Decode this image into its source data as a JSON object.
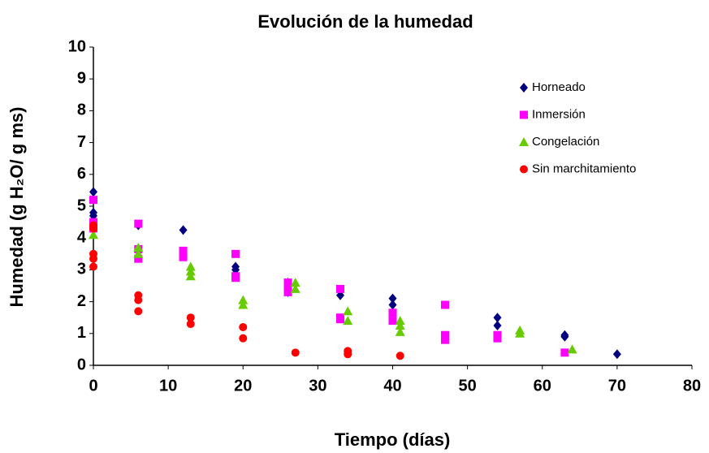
{
  "chart_data": {
    "type": "scatter",
    "title": "Evolución de la humedad",
    "x_label": "Tiempo (días)",
    "y_label": "Humedad (g H₂O/ g ms)",
    "xlim": [
      0,
      80
    ],
    "xticks": [
      0,
      10,
      20,
      30,
      40,
      50,
      60,
      70,
      80
    ],
    "ylim": [
      0,
      10
    ],
    "yticks": [
      0,
      1,
      2,
      3,
      4,
      5,
      6,
      7,
      8,
      9,
      10
    ],
    "grid": false,
    "legend": "upper right",
    "series": [
      {
        "name": "Horneado",
        "color": "#000080",
        "marker": "diamond",
        "x": [
          0,
          0,
          0,
          6,
          6,
          12,
          19,
          19,
          26,
          26,
          33,
          40,
          40,
          54,
          54,
          63,
          63,
          70
        ],
        "values": [
          5.45,
          4.8,
          4.7,
          4.4,
          3.6,
          4.25,
          3.1,
          3.0,
          2.6,
          2.3,
          2.2,
          2.1,
          1.9,
          1.5,
          1.25,
          0.95,
          0.9,
          0.35
        ]
      },
      {
        "name": "Inmersión",
        "color": "#ff00ff",
        "marker": "square",
        "x": [
          0,
          0,
          0,
          6,
          6,
          6,
          12,
          12,
          19,
          19,
          19,
          26,
          26,
          26,
          33,
          33,
          33,
          40,
          40,
          47,
          47,
          47,
          54,
          54,
          63
        ],
        "values": [
          5.2,
          4.5,
          4.3,
          4.45,
          3.65,
          3.35,
          3.6,
          3.4,
          3.5,
          2.8,
          2.75,
          2.6,
          2.5,
          2.3,
          2.4,
          1.5,
          1.45,
          1.65,
          1.4,
          1.9,
          0.95,
          0.8,
          0.95,
          0.85,
          0.4
        ]
      },
      {
        "name": "Congelación",
        "color": "#66cc00",
        "marker": "triangle",
        "x": [
          0,
          6,
          6,
          13,
          13,
          13,
          20,
          20,
          27,
          27,
          34,
          34,
          41,
          41,
          41,
          57,
          57,
          64
        ],
        "values": [
          4.1,
          3.7,
          3.5,
          3.1,
          2.95,
          2.8,
          2.05,
          1.9,
          2.6,
          2.4,
          1.7,
          1.4,
          1.4,
          1.25,
          1.05,
          1.1,
          1.0,
          0.5
        ]
      },
      {
        "name": "Sin marchitamiento",
        "color": "#ff0000",
        "marker": "circle",
        "x": [
          0,
          0,
          0,
          0,
          0,
          6,
          6,
          6,
          13,
          13,
          20,
          20,
          27,
          34,
          34,
          41
        ],
        "values": [
          4.4,
          4.3,
          3.5,
          3.35,
          3.1,
          2.2,
          2.05,
          1.7,
          1.5,
          1.3,
          1.2,
          0.85,
          0.4,
          0.45,
          0.35,
          0.3
        ]
      }
    ]
  }
}
